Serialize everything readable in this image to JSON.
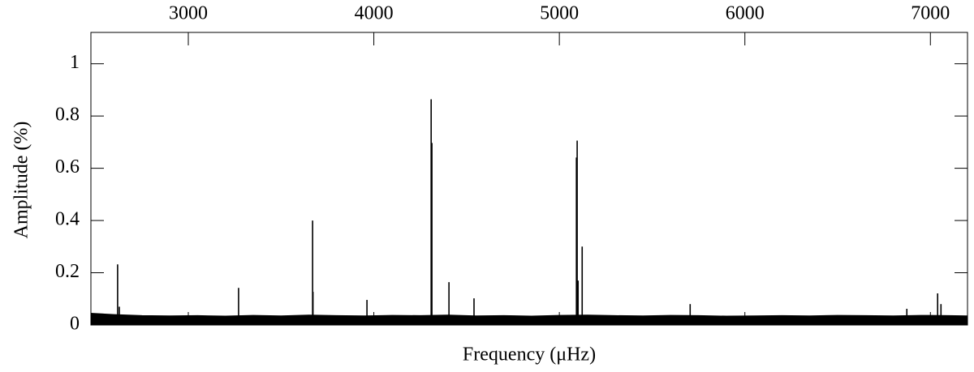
{
  "chart_data": {
    "type": "spectrum",
    "xlabel": "Frequency (μHz)",
    "ylabel": "Amplitude (%)",
    "xlim": [
      2475,
      7200
    ],
    "xticks": [
      3000,
      4000,
      5000,
      6000,
      7000
    ],
    "ylim": [
      0,
      1.12
    ],
    "yticks": [
      0,
      0.2,
      0.4,
      0.6,
      0.8,
      1
    ],
    "color": "#000000",
    "series": [
      {
        "name": "peaks",
        "x": [
          2619,
          2628,
          3271,
          3670,
          3672,
          3963,
          4309,
          4313,
          4405,
          4540,
          5092,
          5096,
          5101,
          5123,
          5705,
          6873,
          7039,
          7057
        ],
        "values": [
          0.232,
          0.07,
          0.142,
          0.4,
          0.127,
          0.096,
          0.864,
          0.697,
          0.164,
          0.102,
          0.641,
          0.706,
          0.17,
          0.3,
          0.08,
          0.062,
          0.121,
          0.08
        ]
      },
      {
        "name": "noise",
        "x": [
          2475,
          2600,
          2750,
          2900,
          3050,
          3200,
          3350,
          3500,
          3650,
          3800,
          3950,
          4100,
          4250,
          4400,
          4550,
          4700,
          4850,
          5000,
          5150,
          5300,
          5450,
          5600,
          5750,
          5900,
          6050,
          6200,
          6350,
          6500,
          6650,
          6800,
          6950,
          7100,
          7200
        ],
        "values": [
          0.045,
          0.04,
          0.036,
          0.035,
          0.036,
          0.034,
          0.037,
          0.035,
          0.038,
          0.036,
          0.035,
          0.037,
          0.036,
          0.038,
          0.035,
          0.036,
          0.034,
          0.037,
          0.038,
          0.036,
          0.035,
          0.037,
          0.036,
          0.034,
          0.035,
          0.036,
          0.035,
          0.037,
          0.036,
          0.035,
          0.037,
          0.036,
          0.035
        ]
      }
    ]
  }
}
